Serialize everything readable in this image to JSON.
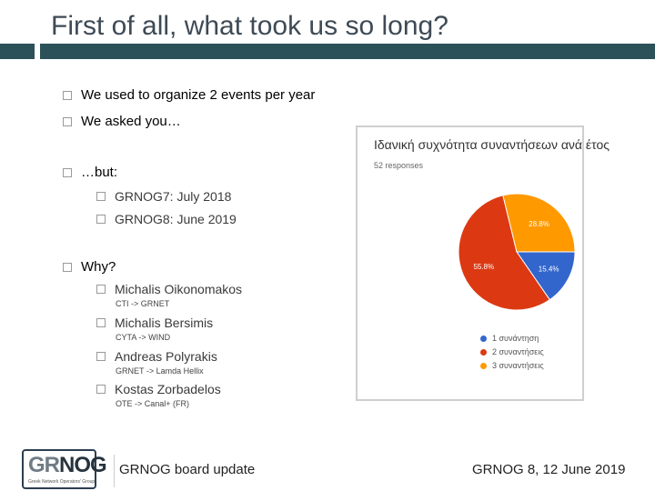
{
  "slide": {
    "title": "First of all, what took us so long?",
    "bullets": {
      "b1": "We used to organize 2 events per year",
      "b2": "We asked you…",
      "b3": "…but:",
      "b3_1": "GRNOG7: July 2018",
      "b3_2": "GRNOG8: June 2019",
      "b4": "Why?",
      "p1_name": "Michalis Oikonomakos",
      "p1_move": "CTI -> GRNET",
      "p2_name": "Michalis Bersimis",
      "p2_move": "CYTA -> WIND",
      "p3_name": "Andreas Polyrakis",
      "p3_move": "GRNET -> Lamda Hellix",
      "p4_name": "Kostas Zorbadelos",
      "p4_move": "OTE -> Canal+ (FR)"
    }
  },
  "chart_data": {
    "type": "pie",
    "title": "Ιδανική συχνότητα συναντήσεων ανά έτος",
    "subtitle": "52 responses",
    "categories": [
      "1 συνάντηση",
      "2 συναντήσεις",
      "3 συναντήσεις"
    ],
    "values": [
      15.4,
      55.8,
      28.8
    ],
    "value_labels": [
      "15.4%",
      "55.8%",
      "28.8%"
    ],
    "colors": [
      "#3366cc",
      "#dc3912",
      "#ff9900"
    ],
    "legend_position": "bottom-left"
  },
  "footer": {
    "left": "GRNOG board update",
    "right": "GRNOG 8, 12 June 2019"
  },
  "logo": {
    "part1": "GR",
    "part2": "NOG",
    "subtitle": "Greek Network Operators' Group"
  }
}
